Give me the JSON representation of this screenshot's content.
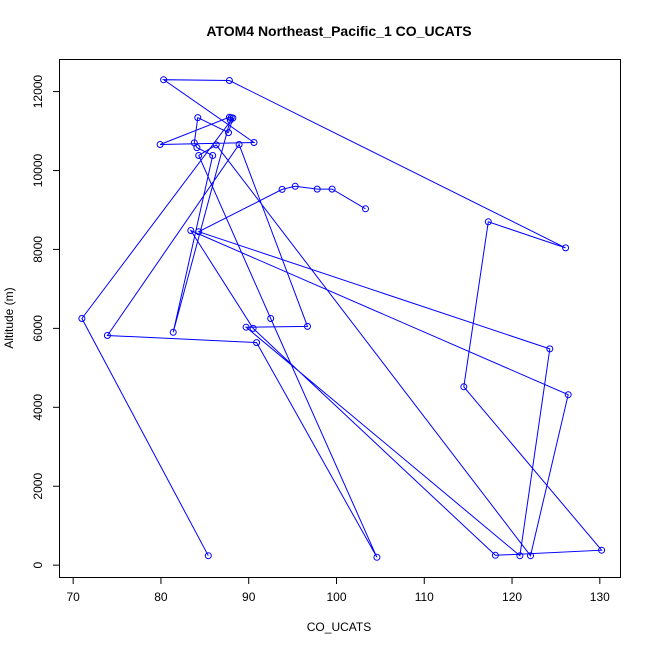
{
  "chart_data": {
    "type": "line",
    "title": "ATOM4 Northeast_Pacific_1 CO_UCATS",
    "xlabel": "CO_UCATS",
    "ylabel": "Altitude (m)",
    "xlim": [
      68.5,
      132.3
    ],
    "ylim": [
      -300,
      12800
    ],
    "xticks": [
      70,
      80,
      90,
      100,
      110,
      120,
      130
    ],
    "yticks": [
      0,
      2000,
      4000,
      6000,
      8000,
      10000,
      12000
    ],
    "grid": false,
    "legend": "none",
    "series": [
      {
        "color": "#0000ff",
        "marker": "open-circle",
        "x": [
          85.4,
          71.0,
          88.2,
          87.7,
          84.2,
          83.8,
          84.1,
          85.9,
          81.4,
          87.9,
          88.0,
          87.8,
          79.9,
          90.6,
          80.3,
          87.8,
          126.1,
          117.3,
          114.5,
          130.2,
          118.1,
          90.5,
          83.4,
          126.4,
          122.1,
          86.3,
          84.3,
          92.5,
          104.6,
          90.9,
          73.9,
          88.9,
          96.7,
          89.7,
          120.9,
          124.3,
          84.3,
          93.8,
          95.3,
          97.8,
          99.5,
          103.3
        ],
        "y": [
          240,
          6250,
          11330,
          10960,
          11340,
          10700,
          10580,
          10380,
          5900,
          11280,
          11340,
          11350,
          10660,
          10710,
          12300,
          12280,
          8040,
          8700,
          4520,
          380,
          250,
          6000,
          8480,
          4320,
          240,
          10650,
          10380,
          6250,
          200,
          5640,
          5820,
          10660,
          6050,
          6030,
          240,
          5480,
          8450,
          9520,
          9600,
          9530,
          9530,
          9030
        ]
      }
    ]
  }
}
